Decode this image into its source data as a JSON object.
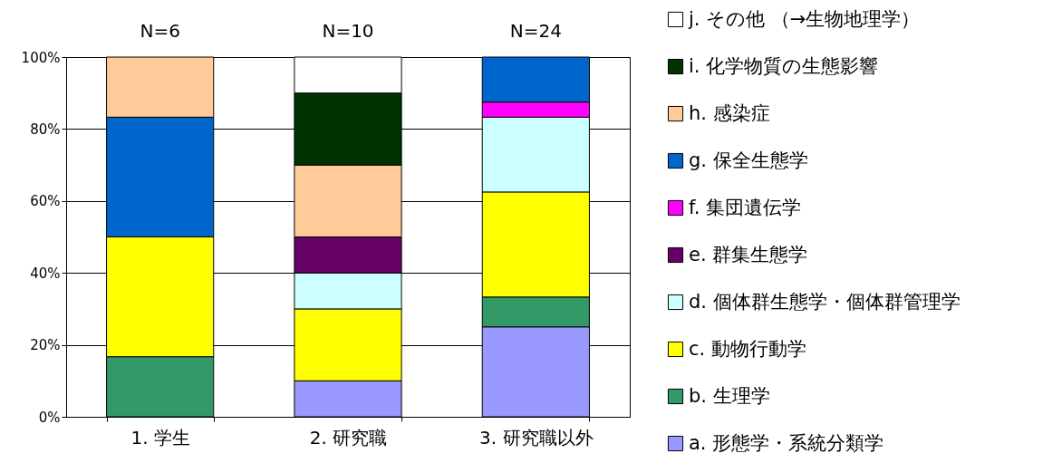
{
  "chart_data": {
    "type": "bar",
    "stacked": true,
    "categories": [
      "1. 学生",
      "2. 研究職",
      "3. 研究職以外"
    ],
    "series": [
      {
        "name": "a. 形態学・系統分類学",
        "color": "#9999ff",
        "values": [
          null,
          10,
          25
        ]
      },
      {
        "name": "b. 生理学",
        "color": "#339966",
        "values": [
          16.7,
          null,
          8.3
        ]
      },
      {
        "name": "c. 動物行動学",
        "color": "#ffff00",
        "values": [
          33.3,
          20,
          29.2
        ]
      },
      {
        "name": "d. 個体群生態学・個体群管理学",
        "color": "#ccffff",
        "values": [
          null,
          10,
          20.8
        ]
      },
      {
        "name": "e. 群集生態学",
        "color": "#660066",
        "values": [
          null,
          10,
          null
        ]
      },
      {
        "name": "f. 集団遺伝学",
        "color": "#ff00ff",
        "values": [
          null,
          null,
          4.2
        ]
      },
      {
        "name": "g. 保全生態学",
        "color": "#0066cc",
        "values": [
          33.3,
          null,
          12.5
        ]
      },
      {
        "name": "h. 感染症",
        "color": "#ffcc99",
        "values": [
          16.7,
          20,
          null
        ]
      },
      {
        "name": "i. 化学物質の生態影響",
        "color": "#003300",
        "values": [
          null,
          20,
          null
        ]
      },
      {
        "name": "j. その他 （→生物地理学）",
        "color": "#ffffff",
        "values": [
          null,
          10,
          null
        ]
      }
    ],
    "ylim": [
      0,
      100
    ],
    "yticks": [
      {
        "value": 0,
        "label": "0%"
      },
      {
        "value": 20,
        "label": "20%"
      },
      {
        "value": 40,
        "label": "40%"
      },
      {
        "value": 60,
        "label": "60%"
      },
      {
        "value": 80,
        "label": "80%"
      },
      {
        "value": 100,
        "label": "100%"
      }
    ],
    "grid": "y",
    "legend": "right",
    "annotations": [
      {
        "text": "N=6",
        "x": "1. 学生",
        "y": 100
      },
      {
        "text": "N=10",
        "x": "2. 研究職",
        "y": 100
      },
      {
        "text": "N=24",
        "x": "3. 研究職以外",
        "y": 100
      }
    ]
  }
}
